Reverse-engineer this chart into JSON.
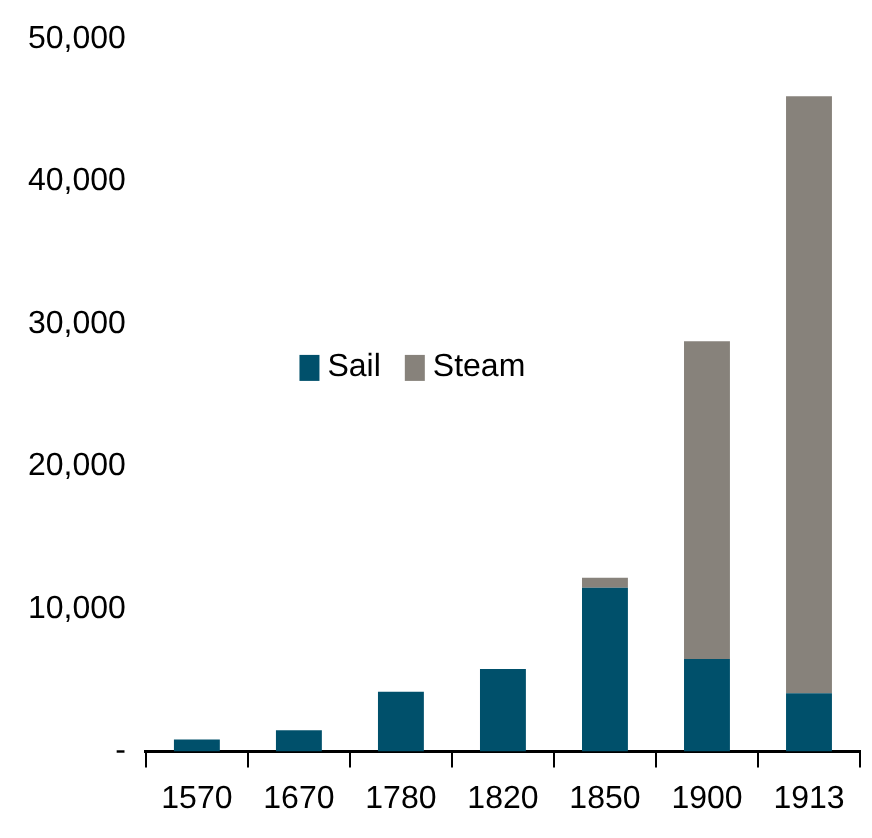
{
  "chart_data": {
    "type": "bar",
    "stacked": true,
    "categories": [
      "1570",
      "1670",
      "1780",
      "1820",
      "1850",
      "1900",
      "1913"
    ],
    "series": [
      {
        "name": "Sail",
        "color": "#00506b",
        "values": [
          850,
          1500,
          4200,
          5800,
          11500,
          6500,
          4100
        ]
      },
      {
        "name": "Steam",
        "color": "#87827b",
        "values": [
          0,
          0,
          0,
          0,
          700,
          22300,
          41900
        ]
      }
    ],
    "ylim": [
      0,
      50000
    ],
    "yticks": [
      {
        "value": 0,
        "label": "-"
      },
      {
        "value": 10000,
        "label": "10,000"
      },
      {
        "value": 20000,
        "label": "20,000"
      },
      {
        "value": 30000,
        "label": "30,000"
      },
      {
        "value": 40000,
        "label": "40,000"
      },
      {
        "value": 50000,
        "label": "50,000"
      }
    ],
    "grid": false,
    "legend": "center"
  }
}
